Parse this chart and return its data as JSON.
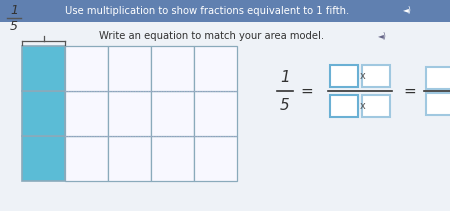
{
  "title": "Use multiplication to show fractions equivalent to 1 fifth.",
  "subtitle": "Write an equation to match your area model.",
  "bg_color": "#eef2f7",
  "title_bg": "#6080b0",
  "title_color": "#ffffff",
  "subtitle_color": "#333333",
  "grid_cols": 5,
  "grid_rows": 3,
  "fill_color": "#5bbcd6",
  "grid_line_color": "#8aaabb",
  "dotted_line_color": "#aaaacc",
  "box_color_blue": "#6ab0d4",
  "box_color_light": "#a0c8e0",
  "eq_frac_color": "#333333"
}
